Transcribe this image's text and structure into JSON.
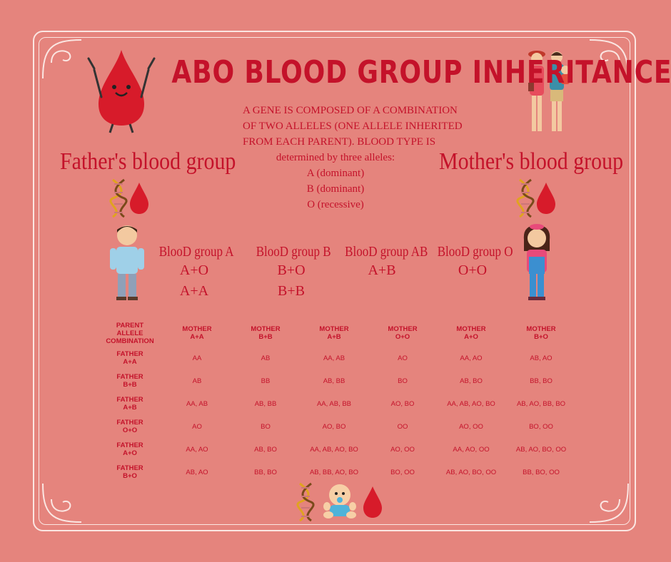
{
  "title": "ABO BLOOD GROUP INHERITANCE",
  "intro": {
    "lines": [
      "A GENE IS COMPOSED OF A COMBINATION",
      "OF TWO ALLELES (ONE ALLELE INHERITED",
      "FROM EACH PARENT). BLOOD TYPE IS",
      "determined by three alleles:",
      "A (dominant)",
      "B (dominant)",
      "O (recessive)"
    ]
  },
  "father_heading": "Father's blood group",
  "mother_heading": "Mother's blood group",
  "blood_groups": [
    {
      "name": "BlooD group A",
      "combos": [
        "A+O",
        "A+A"
      ]
    },
    {
      "name": "BlooD group B",
      "combos": [
        "B+O",
        "B+B"
      ]
    },
    {
      "name": "BlooD group AB",
      "combos": [
        "A+B"
      ]
    },
    {
      "name": "BlooD group O",
      "combos": [
        "O+O"
      ]
    }
  ],
  "table": {
    "corner": [
      "PARENT",
      "ALLELE",
      "COMBINATION"
    ],
    "columns": [
      [
        "MOTHER",
        "A+A"
      ],
      [
        "MOTHER",
        "B+B"
      ],
      [
        "MOTHER",
        "A+B"
      ],
      [
        "MOTHER",
        "O+O"
      ],
      [
        "MOTHER",
        "A+O"
      ],
      [
        "MOTHER",
        "B+O"
      ]
    ],
    "rows": [
      {
        "label": [
          "FATHER",
          "A+A"
        ],
        "cells": [
          "AA",
          "AB",
          "AA, AB",
          "AO",
          "AA, AO",
          "AB, AO"
        ]
      },
      {
        "label": [
          "FATHER",
          "B+B"
        ],
        "cells": [
          "AB",
          "BB",
          "AB, BB",
          "BO",
          "AB, BO",
          "BB, BO"
        ]
      },
      {
        "label": [
          "FATHER",
          "A+B"
        ],
        "cells": [
          "AA, AB",
          "AB, BB",
          "AA, AB, BB",
          "AO, BO",
          "AA, AB, AO, BO",
          "AB, AO, BB, BO"
        ]
      },
      {
        "label": [
          "FATHER",
          "O+O"
        ],
        "cells": [
          "AO",
          "BO",
          "AO, BO",
          "OO",
          "AO, OO",
          "BO, OO"
        ]
      },
      {
        "label": [
          "FATHER",
          "A+O"
        ],
        "cells": [
          "AA, AO",
          "AB, BO",
          "AA, AB, AO, BO",
          "AO, OO",
          "AA, AO, OO",
          "AB, AO, BO, OO"
        ]
      },
      {
        "label": [
          "FATHER",
          "B+O"
        ],
        "cells": [
          "AB, AO",
          "BB, BO",
          "AB, BB, AO, BO",
          "BO, OO",
          "AB, AO, BO, OO",
          "BB, BO, OO"
        ]
      }
    ]
  },
  "colors": {
    "background": "#e5847d",
    "accent": "#c4122a",
    "frame": "#fbe6e2"
  },
  "icons": [
    "blood-drop-mascot-icon",
    "family-icon",
    "dna-icon",
    "blood-drop-icon",
    "father-icon",
    "mother-icon",
    "baby-icon"
  ]
}
